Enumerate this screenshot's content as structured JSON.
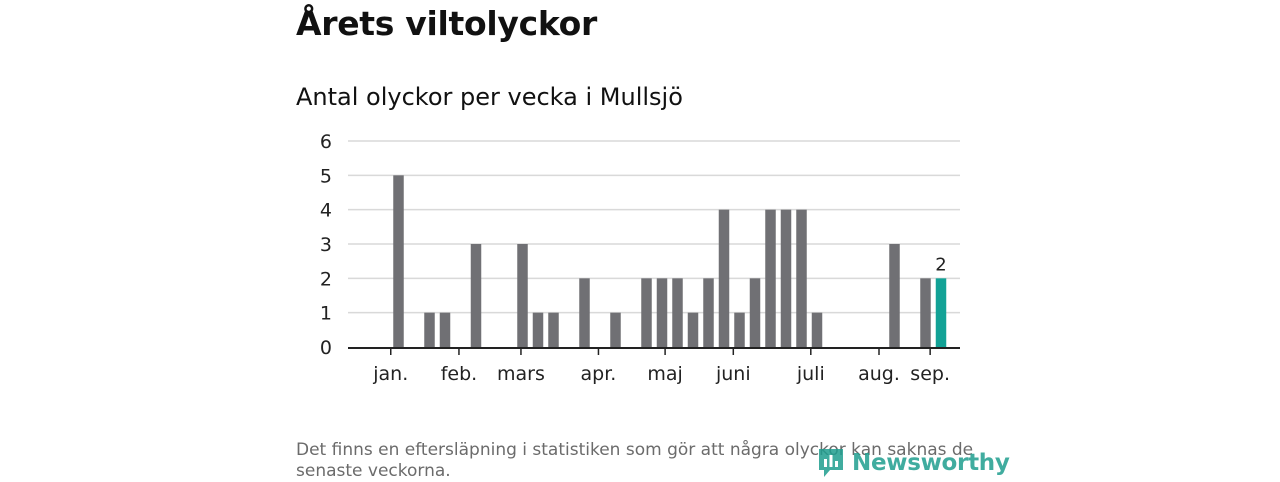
{
  "header": {
    "title": "Årets viltolyckor",
    "subtitle": "Antal olyckor per vecka i Mullsjö"
  },
  "footnote": "Det finns en eftersläpning i statistiken som gör att några olyckor kan saknas de senaste veckorna.",
  "brand": {
    "name": "Newsworthy",
    "icon": "newsworthy-logo-icon",
    "color": "#1f9e8f"
  },
  "colors": {
    "bar": "#707074",
    "highlight": "#12a296",
    "grid": "#d9d9d9",
    "axis": "#222222"
  },
  "chart_data": {
    "type": "bar",
    "title": "",
    "xlabel": "",
    "ylabel": "",
    "ylim": [
      0,
      6
    ],
    "yticks": [
      0,
      1,
      2,
      3,
      4,
      5,
      6
    ],
    "grid": true,
    "x": [
      1,
      2,
      3,
      4,
      5,
      6,
      7,
      8,
      9,
      10,
      11,
      12,
      13,
      14,
      15,
      16,
      17,
      18,
      19,
      20,
      21,
      22,
      23,
      24,
      25,
      26,
      27,
      28,
      29,
      30,
      31,
      32,
      33,
      34,
      35,
      36,
      37,
      38
    ],
    "values": [
      0,
      5,
      0,
      1,
      1,
      0,
      3,
      0,
      0,
      3,
      1,
      1,
      0,
      2,
      0,
      1,
      0,
      2,
      2,
      2,
      1,
      2,
      4,
      1,
      2,
      4,
      4,
      4,
      1,
      0,
      0,
      0,
      0,
      3,
      0,
      2,
      2,
      0
    ],
    "highlight_week": 37,
    "highlight_label": "2",
    "month_ticks": [
      {
        "label": "jan.",
        "week": 1.5
      },
      {
        "label": "feb.",
        "week": 5.9
      },
      {
        "label": "mars",
        "week": 9.9
      },
      {
        "label": "apr.",
        "week": 14.9
      },
      {
        "label": "maj",
        "week": 19.2
      },
      {
        "label": "juni",
        "week": 23.6
      },
      {
        "label": "juli",
        "week": 28.6
      },
      {
        "label": "aug.",
        "week": 33.0
      },
      {
        "label": "sep.",
        "week": 36.3
      }
    ]
  }
}
